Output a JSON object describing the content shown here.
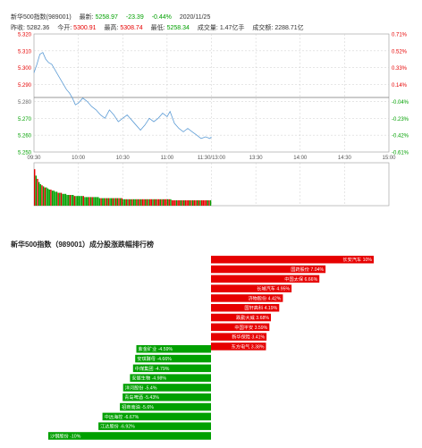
{
  "header": {
    "name": "新华500指数(989001)",
    "latest_label": "最新:",
    "latest": "5258.97",
    "change": "-23.39",
    "change_pct": "-0.44%",
    "date": "2020/11/25",
    "prev_close_label": "昨收:",
    "prev_close": "5282.36",
    "open_label": "今开:",
    "open": "5300.91",
    "high_label": "最高:",
    "high": "5308.74",
    "low_label": "最低:",
    "low": "5258.34",
    "volume_label": "成交量:",
    "volume": "1.47亿手",
    "turnover_label": "成交额:",
    "turnover": "2288.71亿"
  },
  "colors": {
    "up": "#e60000",
    "down": "#00a000",
    "line": "#5b9bd5",
    "grid": "#cccccc"
  },
  "chart_data": [
    {
      "type": "line",
      "ylim": [
        5250,
        5320
      ],
      "y_ticks": [
        "5.320",
        "5.310",
        "5.300",
        "5.290",
        "5.280",
        "5.270",
        "5.260",
        "5.250"
      ],
      "pct_ticks": [
        "0.71%",
        "0.52%",
        "0.33%",
        "0.14%",
        "-0.04%",
        "-0.23%",
        "-0.42%",
        "-0.61%"
      ],
      "x_ticks": [
        "09:30",
        "10:00",
        "10:30",
        "11:00",
        "11:30/13:00",
        "13:30",
        "14:00",
        "14:30",
        "15:00"
      ],
      "reference": 5282.36,
      "grid": true,
      "series": [
        {
          "points": [
            [
              0,
              5297
            ],
            [
              2,
              5302
            ],
            [
              4,
              5308
            ],
            [
              6,
              5309
            ],
            [
              8,
              5305
            ],
            [
              10,
              5303
            ],
            [
              12,
              5302
            ],
            [
              14,
              5299
            ],
            [
              16,
              5296
            ],
            [
              18,
              5293
            ],
            [
              20,
              5290
            ],
            [
              22,
              5287
            ],
            [
              24,
              5285
            ],
            [
              26,
              5282
            ],
            [
              28,
              5278
            ],
            [
              30,
              5279
            ],
            [
              33,
              5282
            ],
            [
              36,
              5280
            ],
            [
              39,
              5277
            ],
            [
              42,
              5275
            ],
            [
              45,
              5272
            ],
            [
              48,
              5270
            ],
            [
              51,
              5275
            ],
            [
              54,
              5272
            ],
            [
              57,
              5268
            ],
            [
              60,
              5270
            ],
            [
              63,
              5272
            ],
            [
              66,
              5269
            ],
            [
              69,
              5266
            ],
            [
              72,
              5263
            ],
            [
              75,
              5266
            ],
            [
              78,
              5270
            ],
            [
              81,
              5268
            ],
            [
              84,
              5270
            ],
            [
              87,
              5273
            ],
            [
              90,
              5271
            ],
            [
              92,
              5274
            ],
            [
              95,
              5267
            ],
            [
              98,
              5264
            ],
            [
              101,
              5262
            ],
            [
              104,
              5264
            ],
            [
              107,
              5262
            ],
            [
              110,
              5260
            ],
            [
              113,
              5258
            ],
            [
              116,
              5259
            ],
            [
              119,
              5258
            ],
            [
              120,
              5259
            ]
          ]
        }
      ]
    },
    {
      "type": "bar",
      "title": "volume",
      "values": [
        34,
        28,
        25,
        22,
        20,
        19,
        18,
        17,
        17,
        16,
        15,
        15,
        14,
        14,
        13,
        13,
        12,
        12,
        12,
        11,
        11,
        11,
        10,
        10,
        10,
        10,
        10,
        9,
        9,
        9,
        9,
        9,
        9,
        9,
        8,
        8,
        8,
        8,
        8,
        8,
        8,
        8,
        8,
        8,
        7,
        7,
        7,
        7,
        7,
        7,
        7,
        7,
        7,
        7,
        7,
        7,
        7,
        7,
        7,
        7,
        6,
        6,
        6,
        6,
        6,
        6,
        6,
        6,
        6,
        6,
        6,
        6,
        6,
        6,
        6,
        6,
        6,
        6,
        6,
        6,
        6,
        6,
        6,
        6,
        6,
        6,
        6,
        6,
        6,
        6,
        6,
        6,
        6,
        5,
        5,
        5,
        5,
        5,
        5,
        5,
        5,
        5,
        5,
        5,
        5,
        5,
        5,
        5,
        5,
        5,
        5,
        5,
        5,
        5,
        5,
        5,
        5,
        5,
        5,
        5
      ],
      "colors": [
        "r",
        "g",
        "r",
        "g",
        "g",
        "r",
        "g",
        "r",
        "g",
        "g",
        "g",
        "r",
        "g",
        "g",
        "g",
        "g",
        "r",
        "g",
        "r",
        "g",
        "g",
        "g",
        "g",
        "g",
        "r",
        "g",
        "g",
        "r",
        "g",
        "g",
        "g",
        "g",
        "g",
        "r",
        "g",
        "g",
        "g",
        "r",
        "g",
        "r",
        "g",
        "g",
        "g",
        "g",
        "g",
        "r",
        "g",
        "g",
        "r",
        "g",
        "r",
        "g",
        "g",
        "r",
        "g",
        "r",
        "g",
        "r",
        "g",
        "r",
        "g",
        "g",
        "r",
        "g",
        "r",
        "g",
        "r",
        "g",
        "g",
        "r",
        "g",
        "r",
        "g",
        "r",
        "r",
        "g",
        "r",
        "g",
        "r",
        "r",
        "g",
        "r",
        "g",
        "r",
        "r",
        "g",
        "r",
        "g",
        "r",
        "r",
        "g",
        "r",
        "g",
        "r",
        "r",
        "r",
        "g",
        "r",
        "r",
        "g",
        "r",
        "g",
        "r",
        "r",
        "r",
        "g",
        "r",
        "g",
        "r",
        "r",
        "g",
        "r",
        "g",
        "r",
        "r",
        "r",
        "r",
        "g",
        "r",
        "g"
      ]
    },
    {
      "type": "bar",
      "title": "新华500指数（989001）成分股涨跌幅排行榜",
      "bars": [
        {
          "name": "长安汽车",
          "value": 10
        },
        {
          "name": "国药股份",
          "value": 7.04
        },
        {
          "name": "中国太保",
          "value": 6.66
        },
        {
          "name": "长城汽车",
          "value": 4.95
        },
        {
          "name": "济物股份",
          "value": 4.42
        },
        {
          "name": "国轩高科",
          "value": 4.19
        },
        {
          "name": "跌勤大威",
          "value": 3.68
        },
        {
          "name": "中国平安",
          "value": 3.59
        },
        {
          "name": "新华保险",
          "value": 3.41
        },
        {
          "name": "东方电气",
          "value": 3.38
        },
        {
          "name": "紫金矿业",
          "value": -4.59
        },
        {
          "name": "安琪酵母",
          "value": -4.66
        },
        {
          "name": "中煤集团",
          "value": -4.79
        },
        {
          "name": "安居生物",
          "value": -4.98
        },
        {
          "name": "洋河股份",
          "value": -5.4
        },
        {
          "name": "青岛啤酒",
          "value": -5.43
        },
        {
          "name": "招商南油",
          "value": -5.6
        },
        {
          "name": "中远海控",
          "value": -6.67
        },
        {
          "name": "江达股份",
          "value": -6.92
        },
        {
          "name": "沙钢股份",
          "value": -10
        }
      ]
    }
  ]
}
